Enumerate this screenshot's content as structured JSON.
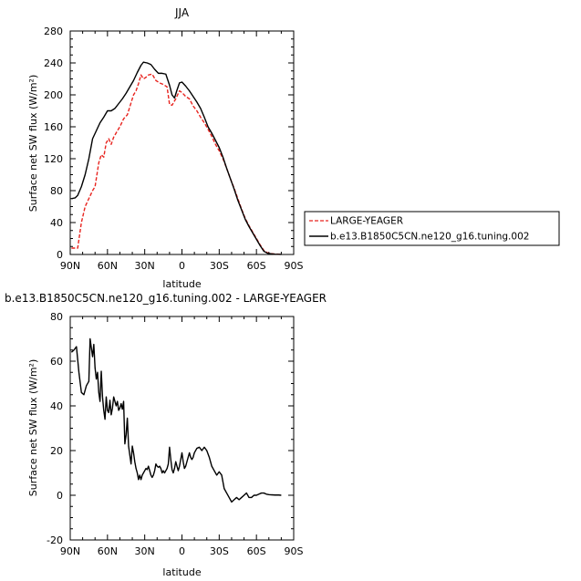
{
  "chart_data": [
    {
      "type": "line",
      "title": "JJA",
      "xlabel": "latitude",
      "ylabel": "Surface net SW flux (W/m²)",
      "xlim": [
        90,
        -90
      ],
      "ylim": [
        0,
        280
      ],
      "x_ticks": [
        90,
        60,
        30,
        0,
        -30,
        -60,
        -90
      ],
      "x_tick_labels": [
        "90N",
        "60N",
        "30N",
        "0",
        "30S",
        "60S",
        "90S"
      ],
      "y_ticks": [
        0,
        40,
        80,
        120,
        160,
        200,
        240,
        280
      ],
      "y_tick_labels": [
        "0",
        "40",
        "80",
        "120",
        "160",
        "200",
        "240",
        "280"
      ],
      "legend_position": "outside-right",
      "series": [
        {
          "name": "LARGE-YEAGER",
          "color": "#e8241f",
          "dash": "dashed",
          "points": [
            [
              89,
              8
            ],
            [
              86,
              8
            ],
            [
              84,
              8
            ],
            [
              81,
              40
            ],
            [
              78,
              60
            ],
            [
              75,
              70
            ],
            [
              72,
              80
            ],
            [
              70,
              85
            ],
            [
              67,
              115
            ],
            [
              65,
              125
            ],
            [
              63,
              122
            ],
            [
              61,
              140
            ],
            [
              59,
              145
            ],
            [
              57,
              138
            ],
            [
              55,
              147
            ],
            [
              52,
              155
            ],
            [
              50,
              160
            ],
            [
              47,
              170
            ],
            [
              44,
              175
            ],
            [
              42,
              185
            ],
            [
              39,
              200
            ],
            [
              37,
              205
            ],
            [
              35,
              214
            ],
            [
              33,
              225
            ],
            [
              31,
              220
            ],
            [
              29,
              222
            ],
            [
              27,
              225
            ],
            [
              24,
              226
            ],
            [
              21,
              218
            ],
            [
              18,
              215
            ],
            [
              15,
              213
            ],
            [
              12,
              210
            ],
            [
              10,
              188
            ],
            [
              8,
              187
            ],
            [
              5,
              195
            ],
            [
              2,
              205
            ],
            [
              0,
              203
            ],
            [
              -3,
              198
            ],
            [
              -6,
              195
            ],
            [
              -9,
              186
            ],
            [
              -12,
              180
            ],
            [
              -15,
              172
            ],
            [
              -18,
              165
            ],
            [
              -21,
              157
            ],
            [
              -24,
              148
            ],
            [
              -27,
              138
            ],
            [
              -30,
              130
            ],
            [
              -33,
              120
            ],
            [
              -36,
              108
            ],
            [
              -39,
              95
            ],
            [
              -42,
              83
            ],
            [
              -45,
              70
            ],
            [
              -48,
              57
            ],
            [
              -51,
              45
            ],
            [
              -54,
              36
            ],
            [
              -57,
              28
            ],
            [
              -60,
              20
            ],
            [
              -63,
              12
            ],
            [
              -66,
              5
            ],
            [
              -69,
              2
            ],
            [
              -72,
              1
            ],
            [
              -75,
              0.5
            ],
            [
              -78,
              0.3
            ],
            [
              -80,
              0.2
            ]
          ]
        },
        {
          "name": "b.e13.B1850C5CN.ne120_g16.tuning.002",
          "color": "#000000",
          "dash": "solid",
          "points": [
            [
              89,
              70
            ],
            [
              86,
              71
            ],
            [
              84,
              74
            ],
            [
              81,
              85
            ],
            [
              78,
              100
            ],
            [
              75,
              120
            ],
            [
              72,
              145
            ],
            [
              69,
              155
            ],
            [
              66,
              165
            ],
            [
              63,
              172
            ],
            [
              60,
              180
            ],
            [
              57,
              180
            ],
            [
              54,
              183
            ],
            [
              51,
              189
            ],
            [
              48,
              195
            ],
            [
              45,
              202
            ],
            [
              42,
              210
            ],
            [
              39,
              218
            ],
            [
              36,
              228
            ],
            [
              33,
              237
            ],
            [
              31,
              241
            ],
            [
              28,
              240
            ],
            [
              25,
              238
            ],
            [
              22,
              232
            ],
            [
              19,
              227
            ],
            [
              16,
              227
            ],
            [
              13,
              226
            ],
            [
              10,
              212
            ],
            [
              8,
              200
            ],
            [
              6,
              196
            ],
            [
              4,
              206
            ],
            [
              2,
              215
            ],
            [
              0,
              216
            ],
            [
              -3,
              211
            ],
            [
              -6,
              205
            ],
            [
              -9,
              198
            ],
            [
              -12,
              191
            ],
            [
              -15,
              183
            ],
            [
              -18,
              172
            ],
            [
              -21,
              160
            ],
            [
              -24,
              152
            ],
            [
              -27,
              143
            ],
            [
              -30,
              134
            ],
            [
              -33,
              122
            ],
            [
              -36,
              108
            ],
            [
              -39,
              95
            ],
            [
              -42,
              82
            ],
            [
              -45,
              68
            ],
            [
              -48,
              56
            ],
            [
              -51,
              44
            ],
            [
              -54,
              35
            ],
            [
              -57,
              27
            ],
            [
              -60,
              19
            ],
            [
              -63,
              11
            ],
            [
              -66,
              4
            ],
            [
              -69,
              1.5
            ],
            [
              -72,
              0.8
            ],
            [
              -75,
              0.4
            ],
            [
              -78,
              0.2
            ],
            [
              -80,
              0.1
            ]
          ]
        }
      ]
    },
    {
      "type": "line",
      "title": "b.e13.B1850C5CN.ne120_g16.tuning.002 - LARGE-YEAGER",
      "xlabel": "latitude",
      "ylabel": "Surface net SW flux (W/m²)",
      "xlim": [
        90,
        -90
      ],
      "ylim": [
        -20,
        80
      ],
      "x_ticks": [
        90,
        60,
        30,
        0,
        -30,
        -60,
        -90
      ],
      "x_tick_labels": [
        "90N",
        "60N",
        "30N",
        "0",
        "30S",
        "60S",
        "90S"
      ],
      "y_ticks": [
        -20,
        0,
        20,
        40,
        60,
        80
      ],
      "y_tick_labels": [
        "-20",
        "0",
        "20",
        "40",
        "60",
        "80"
      ],
      "series": [
        {
          "color": "#000000",
          "dash": "solid",
          "points": [
            [
              89,
              64
            ],
            [
              87,
              65
            ],
            [
              85,
              66.5
            ],
            [
              83,
              55
            ],
            [
              81,
              46
            ],
            [
              79,
              45
            ],
            [
              77,
              49
            ],
            [
              75,
              51
            ],
            [
              74,
              70
            ],
            [
              73,
              66
            ],
            [
              72,
              62
            ],
            [
              71,
              67.5
            ],
            [
              70,
              57
            ],
            [
              69,
              52
            ],
            [
              68,
              55
            ],
            [
              67,
              46
            ],
            [
              66,
              42
            ],
            [
              65,
              55.5
            ],
            [
              64,
              44
            ],
            [
              63,
              38
            ],
            [
              62,
              34
            ],
            [
              61,
              44
            ],
            [
              60,
              38
            ],
            [
              59,
              37
            ],
            [
              58,
              42.5
            ],
            [
              57,
              36
            ],
            [
              56,
              39
            ],
            [
              55,
              44
            ],
            [
              54,
              42
            ],
            [
              53,
              40
            ],
            [
              52,
              42
            ],
            [
              51,
              38
            ],
            [
              50,
              39
            ],
            [
              49,
              41
            ],
            [
              48,
              38.5
            ],
            [
              47,
              42
            ],
            [
              46,
              23
            ],
            [
              45,
              27
            ],
            [
              44,
              34.5
            ],
            [
              43,
              22
            ],
            [
              42,
              18
            ],
            [
              41,
              14
            ],
            [
              40,
              22
            ],
            [
              39,
              19
            ],
            [
              38,
              15
            ],
            [
              37,
              12
            ],
            [
              36,
              10
            ],
            [
              35,
              7
            ],
            [
              34,
              9
            ],
            [
              33,
              7
            ],
            [
              32,
              9
            ],
            [
              31,
              10
            ],
            [
              30,
              11
            ],
            [
              29,
              12
            ],
            [
              28,
              11.5
            ],
            [
              27,
              13
            ],
            [
              26,
              11
            ],
            [
              25,
              9
            ],
            [
              24,
              8
            ],
            [
              23,
              9
            ],
            [
              22,
              11
            ],
            [
              21,
              14
            ],
            [
              20,
              13
            ],
            [
              19,
              12.5
            ],
            [
              18,
              13
            ],
            [
              17,
              12
            ],
            [
              16,
              10
            ],
            [
              15,
              11
            ],
            [
              14,
              10
            ],
            [
              13,
              11
            ],
            [
              12,
              12
            ],
            [
              11,
              14
            ],
            [
              10,
              21.5
            ],
            [
              9,
              16
            ],
            [
              8,
              11.5
            ],
            [
              7,
              10
            ],
            [
              6,
              12
            ],
            [
              5,
              15
            ],
            [
              4,
              13
            ],
            [
              3,
              11
            ],
            [
              2,
              13
            ],
            [
              1,
              16
            ],
            [
              0,
              19
            ],
            [
              -1,
              15
            ],
            [
              -2,
              12
            ],
            [
              -3,
              13
            ],
            [
              -4,
              15
            ],
            [
              -5,
              17
            ],
            [
              -6,
              19
            ],
            [
              -7,
              17
            ],
            [
              -8,
              16
            ],
            [
              -9,
              17
            ],
            [
              -10,
              19
            ],
            [
              -12,
              21
            ],
            [
              -14,
              21.5
            ],
            [
              -16,
              20
            ],
            [
              -18,
              21.5
            ],
            [
              -20,
              20
            ],
            [
              -22,
              17
            ],
            [
              -24,
              13
            ],
            [
              -26,
              11
            ],
            [
              -28,
              9
            ],
            [
              -30,
              10.5
            ],
            [
              -32,
              9
            ],
            [
              -34,
              3
            ],
            [
              -36,
              1
            ],
            [
              -38,
              -1
            ],
            [
              -40,
              -3
            ],
            [
              -42,
              -2
            ],
            [
              -44,
              -1
            ],
            [
              -46,
              -2
            ],
            [
              -48,
              -1
            ],
            [
              -50,
              0
            ],
            [
              -52,
              1
            ],
            [
              -54,
              -1
            ],
            [
              -56,
              -1
            ],
            [
              -58,
              0
            ],
            [
              -60,
              0
            ],
            [
              -62,
              0.5
            ],
            [
              -64,
              1
            ],
            [
              -66,
              1
            ],
            [
              -68,
              0.5
            ],
            [
              -70,
              0.3
            ],
            [
              -72,
              0.2
            ],
            [
              -75,
              0.1
            ],
            [
              -78,
              0.1
            ],
            [
              -80,
              0
            ]
          ]
        }
      ]
    }
  ]
}
